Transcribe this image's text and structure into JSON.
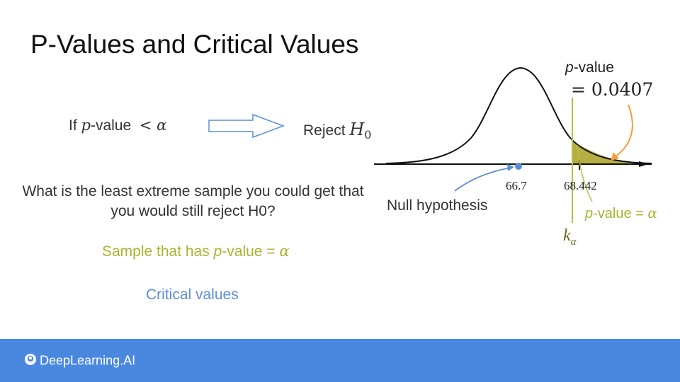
{
  "title": "P-Values and Critical Values",
  "rule": {
    "prefix": "If ",
    "p": "p",
    "suffix": "-value",
    "lt_alpha": "< α",
    "reject_word": "Reject ",
    "h0": "H",
    "h0_sub": "0"
  },
  "question": "What is the least extreme sample you could get that you would still reject H0?",
  "sample": {
    "prefix": "Sample that has ",
    "p": "p",
    "suffix": "-value = ",
    "alpha": "α"
  },
  "critical_values": "Critical values",
  "graph": {
    "pvalue_label_p": "p",
    "pvalue_label_rest": "-value",
    "pvalue_number": "= 0.0407",
    "tick_mean": "66.7",
    "tick_obs": "68.442",
    "null_hypothesis": "Null hypothesis",
    "pv_alpha_p": "p",
    "pv_alpha_rest": "-value = ",
    "pv_alpha_alpha": "α",
    "k": "k",
    "k_sub": "α"
  },
  "brand": "DeepLearning.AI",
  "colors": {
    "footer": "#4a88e0",
    "olive": "#a9b530",
    "blue": "#5a8fd6",
    "orange": "#f0a040"
  }
}
